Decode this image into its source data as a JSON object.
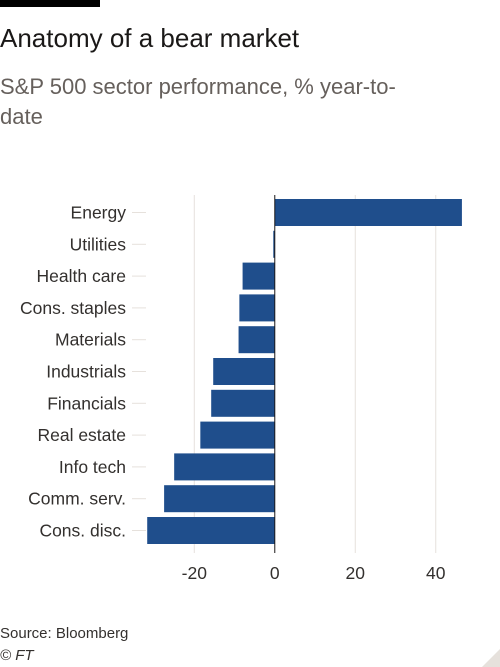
{
  "header": {
    "title": "Anatomy of a bear market",
    "subtitle": "S&P 500 sector performance, % year-to-date"
  },
  "footer": {
    "source": "Source: Bloomberg",
    "credit": "© FT"
  },
  "colors": {
    "bar": "#1f4e8c",
    "grid": "#e6e1dc",
    "zero_line": "#1a1817",
    "tick_text": "#33302e"
  },
  "chart_data": {
    "type": "bar",
    "orientation": "horizontal",
    "title": "Anatomy of a bear market",
    "subtitle": "S&P 500 sector performance, % year-to-date",
    "categories": [
      "Energy",
      "Utilities",
      "Health care",
      "Cons. staples",
      "Materials",
      "Industrials",
      "Financials",
      "Real estate",
      "Info tech",
      "Comm. serv.",
      "Cons. disc."
    ],
    "values": [
      46.5,
      -0.2,
      -8.0,
      -8.8,
      -9.0,
      -15.3,
      -15.8,
      -18.5,
      -25.0,
      -27.5,
      -31.7
    ],
    "xlabel": "",
    "ylabel": "",
    "xlim": [
      -32,
      50
    ],
    "xticks": [
      -20,
      0,
      20,
      40
    ],
    "xtick_labels": [
      "-20",
      "0",
      "20",
      "40"
    ],
    "grid": true
  }
}
